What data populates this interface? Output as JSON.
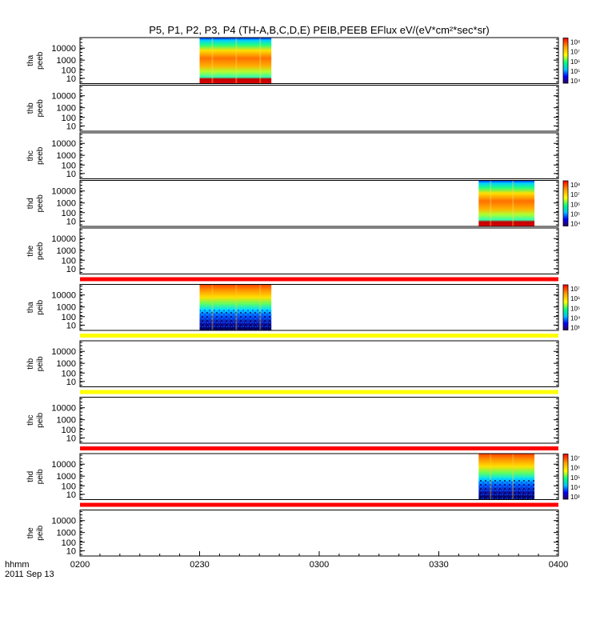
{
  "title": "P5, P1, P2, P3, P4 (TH-A,B,C,D,E) PEIB,PEEB EFlux eV/(eV*cm²*sec*sr)",
  "xaxis": {
    "label_units": "hhmm",
    "date": "2011 Sep 13",
    "ticks": [
      "0200",
      "0230",
      "0300",
      "0330",
      "0400"
    ],
    "range": [
      "02:00",
      "04:00"
    ]
  },
  "colors": {
    "flag_red": "#ff0000",
    "flag_yellow": "#ffff00",
    "axis": "#000000",
    "background": "#ffffff"
  },
  "chart_data": {
    "type": "heatmap",
    "y_scale": "log",
    "y_ticks": [
      "10",
      "100",
      "1000",
      "10000"
    ],
    "panels": [
      {
        "probe": "tha",
        "product": "peeb",
        "data": [
          {
            "start": "02:30",
            "end": "02:48",
            "pattern": "electron"
          }
        ],
        "colorbar": {
          "labels": [
            "10⁸",
            "10⁷",
            "10⁶",
            "10⁵",
            "10⁴"
          ]
        }
      },
      {
        "probe": "thb",
        "product": "peeb",
        "data": []
      },
      {
        "probe": "thc",
        "product": "peeb",
        "data": []
      },
      {
        "probe": "thd",
        "product": "peeb",
        "data": [
          {
            "start": "03:40",
            "end": "03:54",
            "pattern": "electron"
          }
        ],
        "colorbar": {
          "labels": [
            "10⁸",
            "10⁷",
            "10⁶",
            "10⁵",
            "10⁴"
          ]
        }
      },
      {
        "probe": "the",
        "product": "peeb",
        "data": []
      },
      {
        "probe": "tha",
        "product": "peib",
        "data": [
          {
            "start": "02:30",
            "end": "02:48",
            "pattern": "ion"
          }
        ],
        "colorbar": {
          "labels": [
            "10⁷",
            "10⁶",
            "10⁵",
            "10⁴",
            "10³"
          ]
        }
      },
      {
        "probe": "thb",
        "product": "peib",
        "data": []
      },
      {
        "probe": "thc",
        "product": "peib",
        "data": []
      },
      {
        "probe": "thd",
        "product": "peib",
        "data": [
          {
            "start": "03:40",
            "end": "03:54",
            "pattern": "ion"
          }
        ],
        "colorbar": {
          "labels": [
            "10⁷",
            "10⁶",
            "10⁵",
            "10⁴",
            "10³"
          ]
        }
      },
      {
        "probe": "the",
        "product": "peib",
        "data": []
      }
    ],
    "flag_bars": [
      {
        "after_panel": 4,
        "color": "red"
      },
      {
        "after_panel": 5,
        "color": "yellow"
      },
      {
        "after_panel": 6,
        "color": "yellow"
      },
      {
        "after_panel": 7,
        "color": "red"
      },
      {
        "after_panel": 8,
        "color": "red"
      }
    ]
  }
}
